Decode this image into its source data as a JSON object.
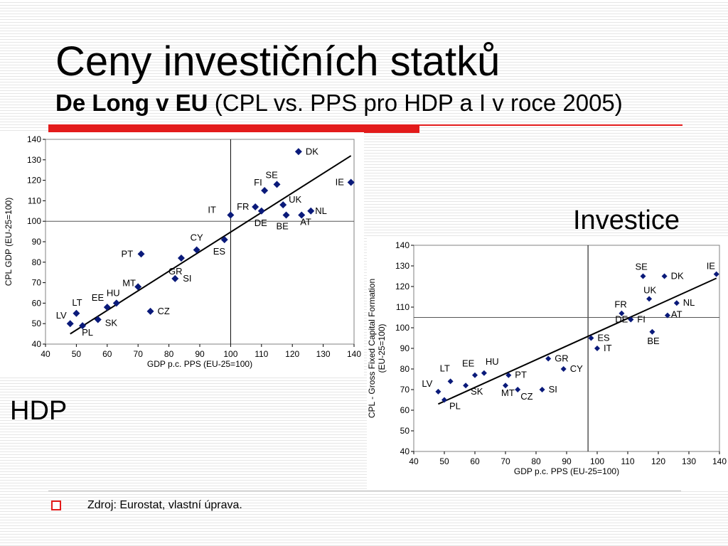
{
  "slide": {
    "title": "Ceny investičních statků",
    "subtitle_bold": "De Long v EU",
    "subtitle_rest": "(CPL vs. PPS pro HDP a I v roce 2005)",
    "label_investice": "Investice",
    "label_hdp": "HDP",
    "source": "Zdroj: Eurostat, vlastní úprava."
  },
  "colors": {
    "accent_red": "#e31b1b",
    "marker": "#0a1a7a",
    "line": "#000000"
  },
  "chart_data": [
    {
      "type": "scatter",
      "xlabel": "GDP p.c. PPS (EU-25=100)",
      "ylabel": "CPL GDP (EU-25=100)",
      "xlim": [
        40,
        140
      ],
      "ylim": [
        40,
        140
      ],
      "xticks": [
        40,
        50,
        60,
        70,
        80,
        90,
        100,
        110,
        120,
        130,
        140
      ],
      "yticks": [
        40,
        50,
        60,
        70,
        80,
        90,
        100,
        110,
        120,
        130,
        140
      ],
      "reference_lines": {
        "x": 100,
        "y": 100
      },
      "trend_line": [
        [
          48,
          45
        ],
        [
          139,
          132
        ]
      ],
      "points": [
        {
          "label": "DK",
          "x": 122,
          "y": 134
        },
        {
          "label": "SE",
          "x": 115,
          "y": 118
        },
        {
          "label": "FI",
          "x": 111,
          "y": 115
        },
        {
          "label": "IE",
          "x": 139,
          "y": 119
        },
        {
          "label": "UK",
          "x": 117,
          "y": 108
        },
        {
          "label": "NL",
          "x": 126,
          "y": 105
        },
        {
          "label": "FR",
          "x": 108,
          "y": 107
        },
        {
          "label": "DE",
          "x": 110,
          "y": 105
        },
        {
          "label": "BE",
          "x": 118,
          "y": 103
        },
        {
          "label": "AT",
          "x": 123,
          "y": 103
        },
        {
          "label": "IT",
          "x": 100,
          "y": 103
        },
        {
          "label": "CY",
          "x": 89,
          "y": 86
        },
        {
          "label": "ES",
          "x": 98,
          "y": 91
        },
        {
          "label": "PT",
          "x": 71,
          "y": 84
        },
        {
          "label": "GR",
          "x": 84,
          "y": 82
        },
        {
          "label": "SI",
          "x": 82,
          "y": 72
        },
        {
          "label": "MT",
          "x": 70,
          "y": 68
        },
        {
          "label": "HU",
          "x": 63,
          "y": 60
        },
        {
          "label": "EE",
          "x": 60,
          "y": 58
        },
        {
          "label": "CZ",
          "x": 74,
          "y": 56
        },
        {
          "label": "LT",
          "x": 50,
          "y": 55
        },
        {
          "label": "LV",
          "x": 48,
          "y": 50
        },
        {
          "label": "SK",
          "x": 57,
          "y": 52
        },
        {
          "label": "PL",
          "x": 52,
          "y": 49
        }
      ]
    },
    {
      "type": "scatter",
      "xlabel": "GDP p.c. PPS (EU-25=100)",
      "ylabel": "CPL - Gross Fixed Capital Formation (EU-25=100)",
      "xlim": [
        40,
        140
      ],
      "ylim": [
        40,
        140
      ],
      "xticks": [
        40,
        50,
        60,
        70,
        80,
        90,
        100,
        110,
        120,
        130,
        140
      ],
      "yticks": [
        40,
        50,
        60,
        70,
        80,
        90,
        100,
        110,
        120,
        130,
        140
      ],
      "reference_lines": {
        "x": 97,
        "y": 105
      },
      "trend_line": [
        [
          48,
          63
        ],
        [
          139,
          124
        ]
      ],
      "points": [
        {
          "label": "IE",
          "x": 139,
          "y": 126
        },
        {
          "label": "SE",
          "x": 115,
          "y": 125
        },
        {
          "label": "DK",
          "x": 122,
          "y": 125
        },
        {
          "label": "UK",
          "x": 117,
          "y": 114
        },
        {
          "label": "NL",
          "x": 126,
          "y": 112
        },
        {
          "label": "FR",
          "x": 108,
          "y": 107
        },
        {
          "label": "DE",
          "x": 111,
          "y": 104
        },
        {
          "label": "FI",
          "x": 111,
          "y": 104
        },
        {
          "label": "AT",
          "x": 123,
          "y": 106
        },
        {
          "label": "BE",
          "x": 118,
          "y": 98
        },
        {
          "label": "ES",
          "x": 98,
          "y": 95
        },
        {
          "label": "IT",
          "x": 100,
          "y": 90
        },
        {
          "label": "GR",
          "x": 84,
          "y": 85
        },
        {
          "label": "CY",
          "x": 89,
          "y": 80
        },
        {
          "label": "PT",
          "x": 71,
          "y": 77
        },
        {
          "label": "EE",
          "x": 60,
          "y": 77
        },
        {
          "label": "HU",
          "x": 63,
          "y": 78
        },
        {
          "label": "LT",
          "x": 52,
          "y": 74
        },
        {
          "label": "SK",
          "x": 57,
          "y": 72
        },
        {
          "label": "MT",
          "x": 70,
          "y": 72
        },
        {
          "label": "CZ",
          "x": 74,
          "y": 70
        },
        {
          "label": "SI",
          "x": 82,
          "y": 70
        },
        {
          "label": "LV",
          "x": 48,
          "y": 69
        },
        {
          "label": "PL",
          "x": 50,
          "y": 65
        }
      ]
    }
  ]
}
